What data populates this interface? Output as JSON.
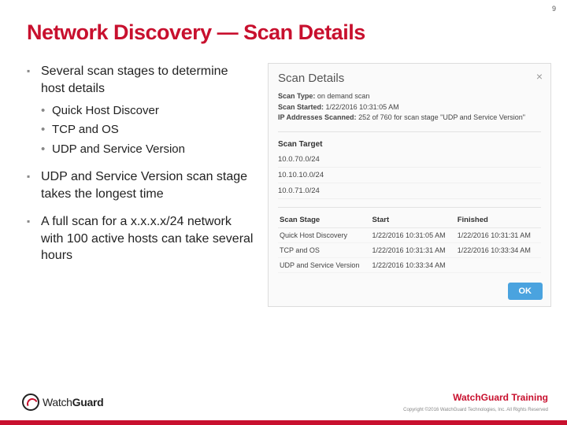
{
  "page_number": "9",
  "title_prefix": "Network Discovery",
  "title_dash": "—",
  "title_suffix": "Scan Details",
  "bullets": {
    "b1": "Several scan stages to determine host details",
    "sub1": "Quick Host Discover",
    "sub2": "TCP and OS",
    "sub3": "UDP and Service Version",
    "b2": "UDP and Service Version scan stage takes the longest time",
    "b3": "A full scan for a x.x.x.x/24 network with 100 active hosts can take several hours"
  },
  "panel": {
    "title": "Scan Details",
    "close_label": "×",
    "meta": {
      "type_label": "Scan Type:",
      "type_value": "on demand scan",
      "started_label": "Scan Started:",
      "started_value": "1/22/2016 10:31:05 AM",
      "ip_label": "IP Addresses Scanned:",
      "ip_value": "252 of 760 for scan stage \"UDP and Service Version\""
    },
    "target_head": "Scan Target",
    "targets": [
      "10.0.70.0/24",
      "10.10.10.0/24",
      "10.0.71.0/24"
    ],
    "stage_cols": {
      "c1": "Scan Stage",
      "c2": "Start",
      "c3": "Finished"
    },
    "stages": [
      {
        "name": "Quick Host Discovery",
        "start": "1/22/2016 10:31:05 AM",
        "end": "1/22/2016 10:31:31 AM"
      },
      {
        "name": "TCP and OS",
        "start": "1/22/2016 10:31:31 AM",
        "end": "1/22/2016 10:33:34 AM"
      },
      {
        "name": "UDP and Service Version",
        "start": "1/22/2016 10:33:34 AM",
        "end": ""
      }
    ],
    "ok_label": "OK"
  },
  "footer": {
    "logo_text_1": "Watch",
    "logo_text_2": "Guard",
    "training": "WatchGuard Training",
    "copyright": "Copyright ©2016 WatchGuard Technologies, Inc. All Rights Reserved"
  }
}
